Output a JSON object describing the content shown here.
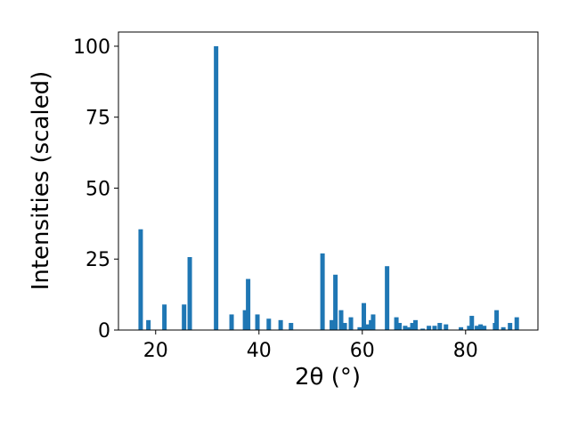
{
  "chart_data": {
    "type": "bar",
    "xlabel": "2θ (°)",
    "ylabel": "Intensities (scaled)",
    "color": "#1f77b4",
    "x": [
      17.1,
      18.6,
      21.7,
      25.5,
      26.6,
      31.7,
      34.7,
      37.3,
      37.9,
      39.7,
      41.9,
      44.2,
      46.2,
      52.3,
      54.1,
      54.8,
      55.9,
      56.6,
      57.8,
      59.5,
      60.3,
      61.0,
      61.7,
      62.1,
      64.8,
      66.6,
      67.2,
      68.3,
      69.1,
      69.7,
      70.3,
      71.7,
      72.9,
      74.0,
      75.0,
      76.2,
      79.1,
      80.7,
      81.2,
      82.2,
      82.9,
      83.6,
      85.7,
      86.0,
      87.3,
      88.6,
      89.9
    ],
    "values": [
      35.5,
      3.5,
      9,
      9,
      25.7,
      100,
      5.5,
      7,
      18,
      5.5,
      4,
      3.5,
      2.5,
      27,
      3.5,
      19.5,
      7,
      2.5,
      4.5,
      1,
      9.5,
      2,
      3.5,
      5.5,
      22.5,
      4.5,
      2.5,
      1.5,
      1,
      2.5,
      3.5,
      0.5,
      1.5,
      1.5,
      2.5,
      2,
      1,
      1.5,
      5,
      1.5,
      2,
      1.5,
      2.5,
      7,
      1,
      2.5,
      4.5
    ],
    "xlim": [
      12.8,
      94.0
    ],
    "ylim": [
      0,
      105
    ],
    "xticks": [
      20,
      40,
      60,
      80
    ],
    "yticks": [
      0,
      25,
      50,
      75,
      100
    ]
  }
}
